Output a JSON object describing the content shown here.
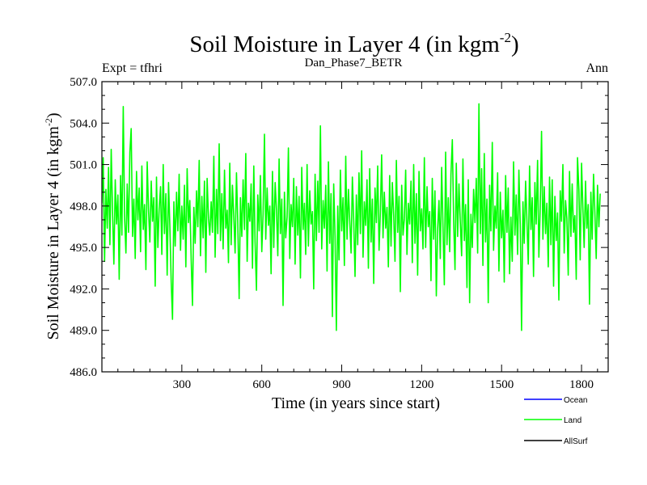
{
  "chart_data": {
    "type": "line",
    "title_main": "Soil Moisture in Layer 4 (in kgm",
    "title_sup": "-2",
    "title_close": ")",
    "subtitle_left": "Expt = tfhri",
    "subtitle_center": "Dan_Phase7_BETR",
    "subtitle_right": "Ann",
    "xlabel": "Time (in years since start)",
    "ylabel_main": "Soil Moisture in Layer 4 (in kgm",
    "ylabel_sup": "-2",
    "ylabel_close": ")",
    "xlim": [
      0,
      1900
    ],
    "ylim": [
      486.0,
      507.0
    ],
    "xticks": [
      300,
      600,
      900,
      1200,
      1500,
      1800
    ],
    "xtick_labels": [
      "300",
      "600",
      "900",
      "1200",
      "1500",
      "1800"
    ],
    "yticks": [
      486.0,
      489.0,
      492.0,
      495.0,
      498.0,
      501.0,
      504.0,
      507.0
    ],
    "ytick_labels": [
      "486.0",
      "489.0",
      "492.0",
      "495.0",
      "498.0",
      "501.0",
      "504.0",
      "507.0"
    ],
    "grid": false,
    "legend_placement": "bottom-right, outside plot",
    "series": [
      {
        "name": "Ocean",
        "color": "#0000ff",
        "values": []
      },
      {
        "name": "Land",
        "color": "#00ff00",
        "sample_interval_years": 5,
        "values": [
          498.2,
          501.5,
          494.0,
          499.2,
          496.4,
          500.8,
          495.2,
          502.1,
          497.5,
          493.8,
          499.9,
          496.7,
          498.8,
          492.7,
          500.2,
          495.9,
          505.2,
          497.3,
          494.6,
          499.6,
          496.1,
          501.9,
          503.6,
          495.8,
          498.5,
          494.2,
          500.5,
          497.0,
          499.3,
          494.7,
          500.9,
          496.3,
          498.1,
          493.4,
          501.2,
          497.6,
          495.4,
          499.8,
          496.9,
          498.6,
          492.2,
          500.1,
          495.0,
          497.8,
          499.4,
          494.5,
          501.0,
          496.0,
          498.9,
          493.0,
          499.7,
          496.6,
          492.5,
          489.8,
          498.3,
          495.1,
          499.0,
          496.2,
          500.3,
          494.8,
          498.0,
          495.6,
          499.5,
          493.6,
          500.7,
          496.8,
          498.4,
          494.1,
          490.8,
          497.9,
          495.3,
          499.1,
          496.5,
          501.3,
          494.4,
          498.7,
          495.7,
          499.8,
          493.2,
          500.0,
          497.1,
          495.9,
          498.3,
          496.1,
          501.6,
          494.3,
          499.2,
          496.0,
          502.5,
          495.5,
          498.9,
          494.9,
          500.6,
          496.4,
          497.7,
          493.9,
          501.1,
          495.2,
          499.5,
          497.2,
          494.6,
          500.4,
          496.8,
          491.3,
          498.6,
          495.8,
          499.9,
          496.3,
          501.8,
          494.0,
          498.2,
          496.9,
          499.6,
          493.5,
          500.9,
          495.4,
          491.9,
          498.8,
          496.2,
          500.2,
          494.7,
          497.4,
          503.2,
          495.6,
          499.3,
          496.6,
          498.0,
          493.1,
          500.5,
          495.0,
          499.7,
          497.8,
          494.4,
          501.4,
          496.0,
          498.5,
          490.8,
          499.0,
          495.7,
          497.2,
          502.2,
          494.2,
          498.1,
          496.5,
          500.0,
          493.8,
          499.4,
          495.9,
          498.7,
          492.8,
          500.8,
          496.3,
          498.2,
          494.5,
          501.0,
          495.1,
          499.1,
          496.7,
          497.6,
          492.0,
          500.3,
          495.5,
          499.8,
          496.1,
          503.8,
          494.9,
          498.4,
          496.4,
          499.5,
          493.3,
          501.2,
          495.3,
          498.9,
          490.0,
          499.6,
          495.8,
          489.0,
          498.0,
          494.1,
          500.6,
          496.2,
          498.6,
          493.7,
          501.6,
          495.6,
          499.2,
          497.0,
          494.6,
          500.1,
          496.9,
          492.9,
          498.8,
          495.2,
          500.4,
          496.0,
          502.0,
          494.3,
          498.3,
          496.6,
          499.9,
          493.5,
          500.7,
          495.4,
          498.5,
          492.4,
          499.3,
          496.8,
          500.9,
          494.8,
          497.5,
          501.7,
          495.7,
          499.0,
          496.4,
          497.9,
          493.6,
          500.2,
          495.1,
          499.7,
          497.3,
          494.0,
          501.3,
          496.1,
          498.7,
          491.8,
          499.5,
          495.9,
          497.1,
          500.6,
          494.5,
          498.2,
          496.7,
          499.8,
          493.9,
          501.0,
          495.3,
          498.9,
          493.0,
          500.5,
          496.2,
          497.8,
          494.9,
          501.5,
          495.0,
          499.4,
          496.5,
          497.6,
          492.6,
          500.0,
          495.6,
          499.1,
          491.5,
          496.3,
          498.4,
          494.2,
          500.8,
          496.6,
          492.3,
          501.9,
          495.2,
          498.6,
          494.7,
          500.3,
          502.8,
          497.0,
          493.4,
          501.1,
          495.8,
          499.6,
          496.9,
          494.4,
          501.4,
          495.5,
          498.1,
          492.1,
          499.9,
          491.0,
          497.4,
          495.0,
          499.2,
          496.8,
          500.0,
          494.6,
          505.4,
          496.0,
          500.7,
          493.7,
          501.8,
          495.4,
          498.5,
          491.0,
          499.5,
          496.2,
          502.6,
          494.8,
          498.0,
          496.4,
          500.4,
          493.3,
          499.0,
          495.7,
          497.7,
          492.5,
          500.2,
          496.1,
          499.3,
          493.1,
          497.2,
          494.0,
          501.2,
          495.9,
          498.8,
          494.5,
          500.6,
          496.6,
          489.0,
          498.3,
          495.3,
          499.8,
          497.0,
          493.8,
          500.9,
          496.3,
          498.6,
          492.9,
          499.7,
          496.7,
          501.3,
          494.3,
          497.9,
          503.4,
          495.6,
          499.4,
          496.0,
          498.2,
          493.6,
          500.1,
          495.2,
          499.9,
          492.2,
          498.7,
          495.5,
          497.5,
          491.2,
          499.1,
          496.9,
          501.0,
          494.6,
          498.4,
          497.1,
          493.0,
          500.5,
          495.8,
          499.6,
          496.1,
          497.3,
          492.7,
          501.5,
          499.2,
          494.1,
          501.1,
          497.8,
          495.0,
          499.8,
          496.4,
          498.1,
          490.9,
          499.0,
          495.6,
          500.3,
          497.6,
          494.2,
          499.5,
          496.5,
          498.9
        ]
      },
      {
        "name": "AllSurf",
        "color": "#000000",
        "values": []
      }
    ]
  }
}
